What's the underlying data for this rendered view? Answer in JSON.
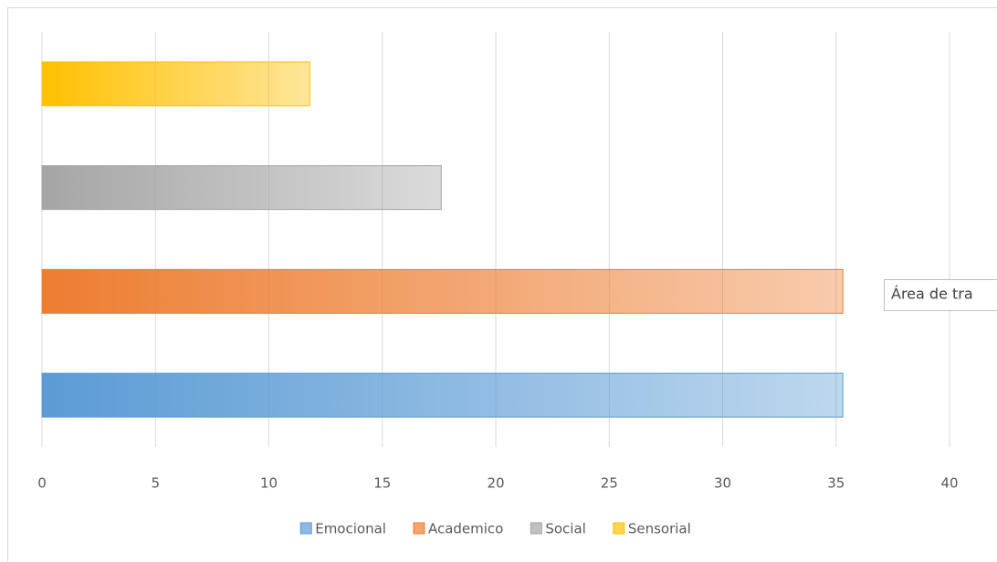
{
  "chart_data": {
    "type": "bar",
    "orientation": "horizontal",
    "series": [
      {
        "name": "Emocional",
        "color": "#5b9bd5",
        "values": [
          35.3
        ]
      },
      {
        "name": "Academico",
        "color": "#ed7d31",
        "values": [
          35.3
        ]
      },
      {
        "name": "Social",
        "color": "#a5a5a5",
        "values": [
          17.6
        ]
      },
      {
        "name": "Sensorial",
        "color": "#ffc000",
        "values": [
          11.8
        ]
      }
    ],
    "xlim": [
      0,
      40
    ],
    "xticks": [
      0,
      5,
      10,
      15,
      20,
      25,
      30,
      35,
      40
    ],
    "grid": true,
    "legend": "bottom",
    "tooltip": "Área de tra"
  }
}
